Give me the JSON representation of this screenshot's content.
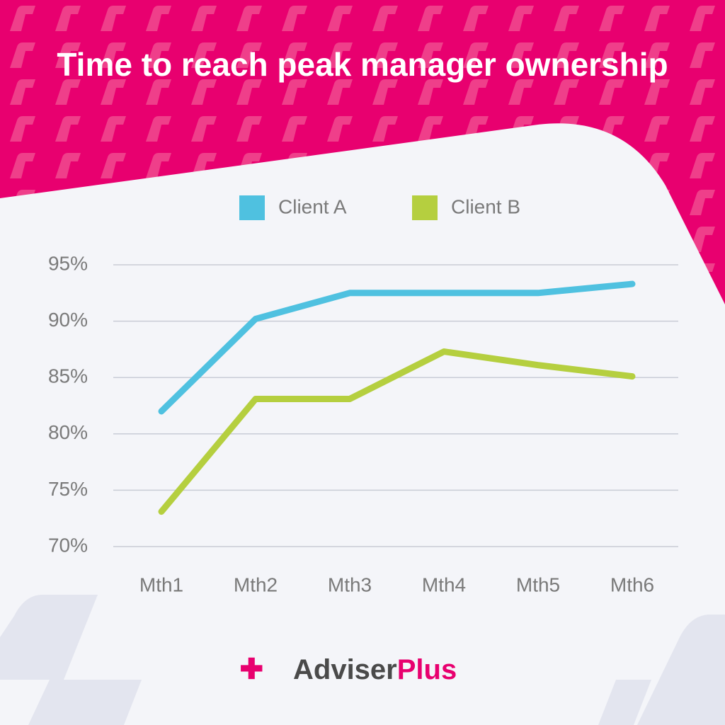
{
  "chart_data": {
    "type": "line",
    "title": "Time to reach peak manager ownership",
    "categories": [
      "Mth1",
      "Mth2",
      "Mth3",
      "Mth4",
      "Mth5",
      "Mth6"
    ],
    "series": [
      {
        "name": "Client A",
        "color": "#4fc1e0",
        "values": [
          82.0,
          90.2,
          92.5,
          92.5,
          92.5,
          93.3
        ]
      },
      {
        "name": "Client B",
        "color": "#b5cf3f",
        "values": [
          73.1,
          83.1,
          83.1,
          87.3,
          86.1,
          85.1
        ]
      }
    ],
    "ylim": [
      70,
      95
    ],
    "yticks": [
      {
        "value": 70,
        "label": "70%"
      },
      {
        "value": 75,
        "label": "75%"
      },
      {
        "value": 80,
        "label": "80%"
      },
      {
        "value": 85,
        "label": "85%"
      },
      {
        "value": 90,
        "label": "90%"
      },
      {
        "value": 95,
        "label": "95%"
      }
    ],
    "grid": true,
    "legend": "top"
  },
  "logo": {
    "part1": "Adviser",
    "part2": "Plus"
  }
}
